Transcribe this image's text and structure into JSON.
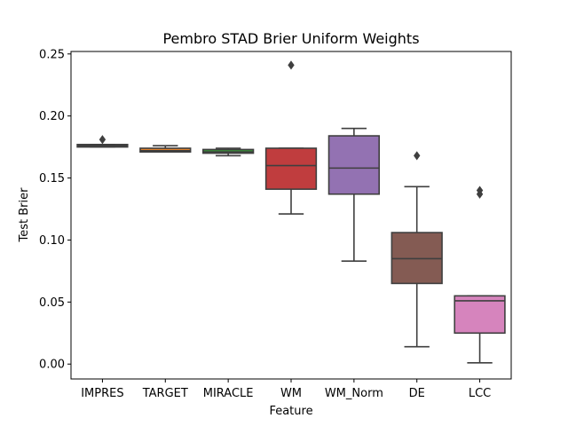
{
  "chart_data": {
    "type": "box",
    "title": "Pembro STAD Brier Uniform Weights",
    "xlabel": "Feature",
    "ylabel": "Test Brier",
    "ylim": [
      -0.012,
      0.252
    ],
    "yticks": [
      0.0,
      0.05,
      0.1,
      0.15,
      0.2,
      0.25
    ],
    "ytick_labels": [
      "0.00",
      "0.05",
      "0.10",
      "0.15",
      "0.20",
      "0.25"
    ],
    "grid": false,
    "categories": [
      "IMPRES",
      "TARGET",
      "MIRACLE",
      "WM",
      "WM_Norm",
      "DE",
      "LCC"
    ],
    "series": [
      {
        "category": "IMPRES",
        "color": "#3274a1",
        "whisker_low": 0.175,
        "q1": 0.175,
        "median": 0.176,
        "q3": 0.177,
        "whisker_high": 0.177,
        "outliers": [
          0.181
        ]
      },
      {
        "category": "TARGET",
        "color": "#e1812c",
        "whisker_low": 0.171,
        "q1": 0.171,
        "median": 0.172,
        "q3": 0.174,
        "whisker_high": 0.176,
        "outliers": []
      },
      {
        "category": "MIRACLE",
        "color": "#3a923a",
        "whisker_low": 0.168,
        "q1": 0.17,
        "median": 0.171,
        "q3": 0.173,
        "whisker_high": 0.174,
        "outliers": []
      },
      {
        "category": "WM",
        "color": "#c03d3e",
        "whisker_low": 0.121,
        "q1": 0.141,
        "median": 0.16,
        "q3": 0.174,
        "whisker_high": 0.174,
        "outliers": [
          0.241
        ]
      },
      {
        "category": "WM_Norm",
        "color": "#9372b2",
        "whisker_low": 0.083,
        "q1": 0.137,
        "median": 0.158,
        "q3": 0.184,
        "whisker_high": 0.19,
        "outliers": []
      },
      {
        "category": "DE",
        "color": "#845b53",
        "whisker_low": 0.014,
        "q1": 0.065,
        "median": 0.085,
        "q3": 0.106,
        "whisker_high": 0.143,
        "outliers": [
          0.168
        ]
      },
      {
        "category": "LCC",
        "color": "#d684bd",
        "whisker_low": 0.001,
        "q1": 0.025,
        "median": 0.051,
        "q3": 0.055,
        "whisker_high": 0.055,
        "outliers": [
          0.137,
          0.14
        ]
      }
    ]
  }
}
